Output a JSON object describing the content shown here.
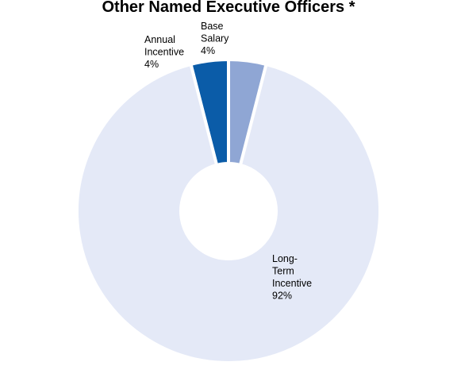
{
  "chart_data": {
    "type": "pie",
    "title": "Other Named Executive Officers *",
    "donut": true,
    "slices": [
      {
        "label_lines": [
          "Base",
          "Salary",
          "4%"
        ],
        "label": "Base Salary",
        "value": 4,
        "color": "#0b5ca8"
      },
      {
        "label_lines": [
          "Long-",
          "Term",
          "Incentive",
          "92%"
        ],
        "label": "Long-Term Incentive",
        "value": 92,
        "color": "#e4e9f7"
      },
      {
        "label_lines": [
          "Annual",
          "Incentive",
          "4%"
        ],
        "label": "Annual Incentive",
        "value": 4,
        "color": "#8fa6d4"
      }
    ]
  }
}
